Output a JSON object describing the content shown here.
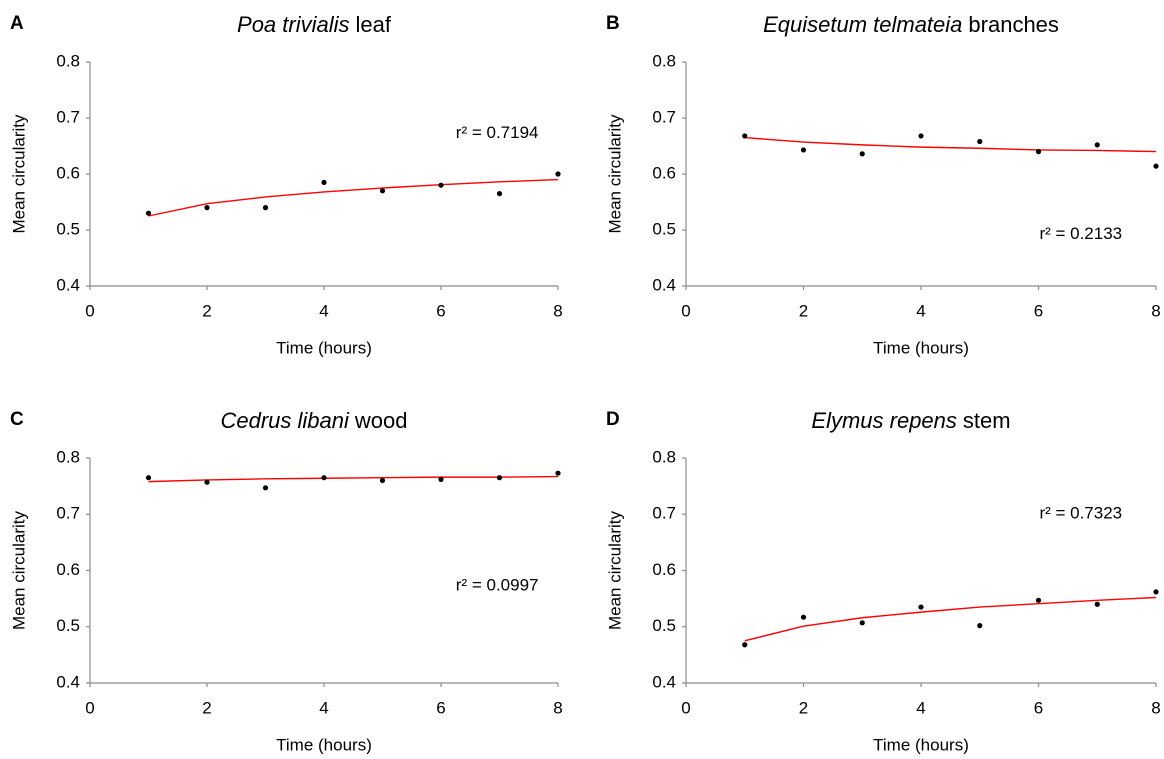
{
  "chart_data": [
    {
      "type": "scatter",
      "panel": "A",
      "title_parts": [
        "Poa trivialis",
        "leaf"
      ],
      "x_label": "Time (hours)",
      "y_label": "Mean circularity",
      "annotation": "r² = 0.7194",
      "x": [
        1,
        2,
        3,
        4,
        5,
        6,
        7,
        8
      ],
      "values": [
        0.53,
        0.54,
        0.54,
        0.585,
        0.57,
        0.58,
        0.565,
        0.6
      ],
      "color": "#000000",
      "fit": {
        "color": "#ff0000",
        "values": [
          0.525,
          0.547,
          0.559,
          0.568,
          0.575,
          0.581,
          0.586,
          0.59
        ]
      },
      "xlim": [
        0,
        8
      ],
      "xticks": [
        0,
        2,
        4,
        6,
        8
      ],
      "ylim": [
        0.4,
        0.8
      ],
      "yticks": [
        0.4,
        0.5,
        0.6,
        0.7,
        0.8
      ]
    },
    {
      "type": "scatter",
      "panel": "B",
      "title_parts": [
        "Equisetum telmateia",
        "branches"
      ],
      "x_label": "Time (hours)",
      "y_label": "Mean circularity",
      "annotation": "r² = 0.2133",
      "x": [
        1,
        2,
        3,
        4,
        5,
        6,
        7,
        8
      ],
      "values": [
        0.668,
        0.643,
        0.636,
        0.668,
        0.658,
        0.64,
        0.652,
        0.614
      ],
      "color": "#000000",
      "fit": {
        "color": "#ff0000",
        "values": [
          0.665,
          0.657,
          0.652,
          0.648,
          0.646,
          0.643,
          0.642,
          0.64
        ]
      },
      "xlim": [
        0,
        8
      ],
      "xticks": [
        0,
        2,
        4,
        6,
        8
      ],
      "ylim": [
        0.4,
        0.8
      ],
      "yticks": [
        0.4,
        0.5,
        0.6,
        0.7,
        0.8
      ]
    },
    {
      "type": "scatter",
      "panel": "C",
      "title_parts": [
        "Cedrus libani",
        "wood"
      ],
      "x_label": "Time (hours)",
      "y_label": "Mean circularity",
      "annotation": "r² = 0.0997",
      "x": [
        1,
        2,
        3,
        4,
        5,
        6,
        7,
        8
      ],
      "values": [
        0.765,
        0.757,
        0.747,
        0.765,
        0.76,
        0.762,
        0.765,
        0.773
      ],
      "color": "#000000",
      "fit": {
        "color": "#ff0000",
        "values": [
          0.758,
          0.761,
          0.763,
          0.764,
          0.765,
          0.766,
          0.766,
          0.767
        ]
      },
      "xlim": [
        0,
        8
      ],
      "xticks": [
        0,
        2,
        4,
        6,
        8
      ],
      "ylim": [
        0.4,
        0.8
      ],
      "yticks": [
        0.4,
        0.5,
        0.6,
        0.7,
        0.8
      ]
    },
    {
      "type": "scatter",
      "panel": "D",
      "title_parts": [
        "Elymus repens",
        "stem"
      ],
      "x_label": "Time (hours)",
      "y_label": "Mean circularity",
      "annotation": "r² = 0.7323",
      "x": [
        1,
        2,
        3,
        4,
        5,
        6,
        7,
        8
      ],
      "values": [
        0.468,
        0.517,
        0.507,
        0.535,
        0.502,
        0.547,
        0.54,
        0.562
      ],
      "color": "#000000",
      "fit": {
        "color": "#ff0000",
        "values": [
          0.475,
          0.501,
          0.516,
          0.526,
          0.535,
          0.541,
          0.547,
          0.552
        ]
      },
      "xlim": [
        0,
        8
      ],
      "xticks": [
        0,
        2,
        4,
        6,
        8
      ],
      "ylim": [
        0.4,
        0.8
      ],
      "yticks": [
        0.4,
        0.5,
        0.6,
        0.7,
        0.8
      ]
    }
  ]
}
